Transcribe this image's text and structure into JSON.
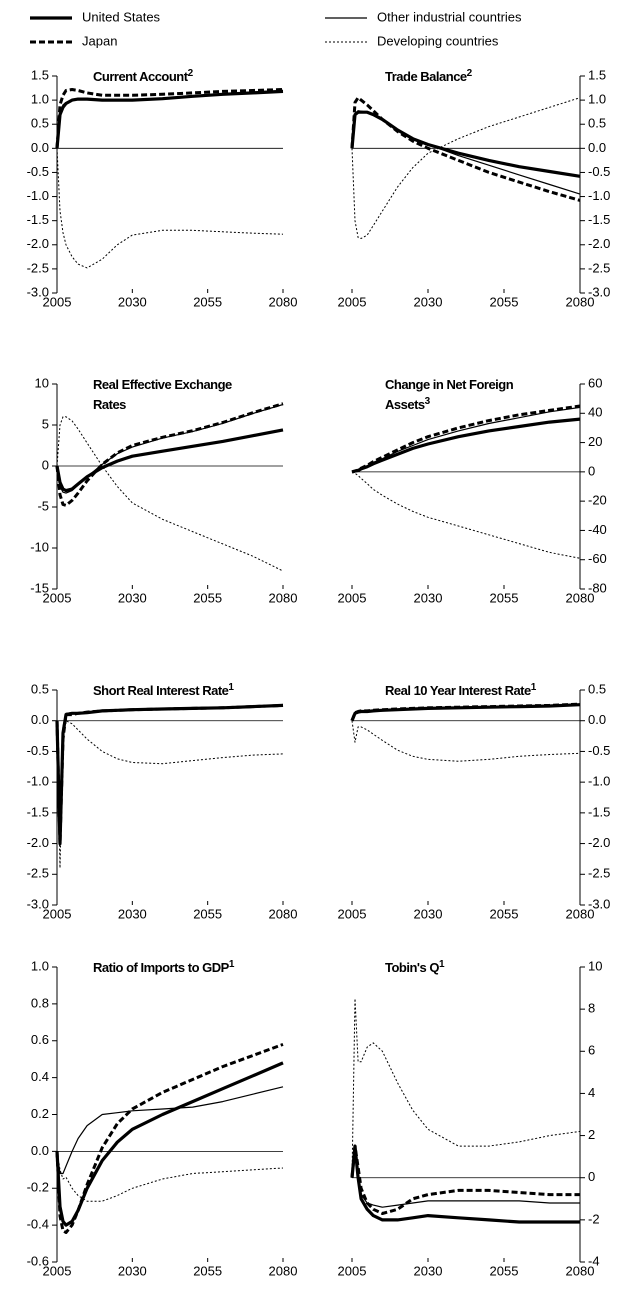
{
  "legend": [
    {
      "name": "United States",
      "color": "#000000",
      "width": 3.2,
      "dash": "none"
    },
    {
      "name": "Japan",
      "color": "#000000",
      "width": 3,
      "dash": "6,3"
    },
    {
      "name": "Other industrial countries",
      "color": "#000000",
      "width": 1.2,
      "dash": "none"
    },
    {
      "name": "Developing countries",
      "color": "#000000",
      "width": 1,
      "dash": "2,2"
    }
  ],
  "chart_data": [
    {
      "type": "line",
      "title": [
        "Current Account"
      ],
      "title_note": "2",
      "yaxis_side": "left",
      "x": [
        2005,
        2006,
        2007,
        2008,
        2010,
        2012,
        2015,
        2020,
        2025,
        2030,
        2040,
        2050,
        2060,
        2070,
        2080
      ],
      "xlim": [
        2005,
        2080
      ],
      "xticks": [
        2005,
        2030,
        2055,
        2080
      ],
      "ylim": [
        -3,
        1.5
      ],
      "yticks": [
        {
          "value": -3,
          "label": "-3.0"
        },
        -2.5,
        {
          "value": -2,
          "label": "-2.0"
        },
        -1.5,
        {
          "value": -1,
          "label": "-1.0"
        },
        -0.5,
        {
          "value": 0,
          "label": "0.0"
        },
        0.5,
        {
          "value": 1,
          "label": "1.0"
        },
        1.5
      ],
      "series": [
        {
          "values": [
            0,
            0.7,
            0.85,
            0.93,
            1.0,
            1.02,
            1.02,
            1.0,
            1.0,
            1.0,
            1.03,
            1.08,
            1.12,
            1.15,
            1.18
          ]
        },
        {
          "values": [
            0,
            0.9,
            1.1,
            1.2,
            1.22,
            1.2,
            1.15,
            1.1,
            1.1,
            1.1,
            1.12,
            1.15,
            1.18,
            1.2,
            1.22
          ]
        },
        {
          "values": [
            0,
            0.75,
            0.9,
            0.95,
            1.0,
            1.02,
            1.02,
            1.0,
            1.0,
            1.0,
            1.03,
            1.08,
            1.13,
            1.17,
            1.2
          ]
        },
        {
          "values": [
            0,
            -1.3,
            -1.75,
            -2.0,
            -2.25,
            -2.4,
            -2.48,
            -2.3,
            -2.0,
            -1.8,
            -1.7,
            -1.7,
            -1.73,
            -1.76,
            -1.78
          ]
        }
      ]
    },
    {
      "type": "line",
      "title": [
        "Trade Balance"
      ],
      "title_note": "2",
      "yaxis_side": "right",
      "x": [
        2005,
        2006,
        2007,
        2008,
        2010,
        2012,
        2015,
        2020,
        2025,
        2030,
        2040,
        2050,
        2060,
        2070,
        2080
      ],
      "xlim": [
        2005,
        2080
      ],
      "xticks": [
        2005,
        2030,
        2055,
        2080
      ],
      "ylim": [
        -3,
        1.5
      ],
      "yticks": [
        {
          "value": -3,
          "label": "-3.0"
        },
        -2.5,
        {
          "value": -2,
          "label": "-2.0"
        },
        -1.5,
        {
          "value": -1,
          "label": "-1.0"
        },
        -0.5,
        {
          "value": 0,
          "label": "0.0"
        },
        0.5,
        {
          "value": 1,
          "label": "1.0"
        },
        1.5
      ],
      "series": [
        {
          "values": [
            0,
            0.7,
            0.75,
            0.75,
            0.75,
            0.7,
            0.6,
            0.38,
            0.2,
            0.08,
            -0.1,
            -0.25,
            -0.38,
            -0.48,
            -0.58
          ]
        },
        {
          "values": [
            0,
            0.95,
            1.05,
            1.0,
            0.9,
            0.78,
            0.6,
            0.35,
            0.15,
            0.0,
            -0.25,
            -0.5,
            -0.7,
            -0.9,
            -1.08
          ]
        },
        {
          "values": [
            0,
            0.72,
            0.78,
            0.77,
            0.75,
            0.68,
            0.58,
            0.38,
            0.2,
            0.08,
            -0.15,
            -0.35,
            -0.55,
            -0.75,
            -0.95
          ]
        },
        {
          "values": [
            0,
            -1.5,
            -1.85,
            -1.87,
            -1.8,
            -1.6,
            -1.3,
            -0.8,
            -0.4,
            -0.1,
            0.2,
            0.45,
            0.65,
            0.85,
            1.05
          ]
        }
      ]
    },
    {
      "type": "line",
      "title": [
        "Real Effective Exchange",
        "Rates"
      ],
      "yaxis_side": "left",
      "x": [
        2005,
        2006,
        2007,
        2008,
        2010,
        2012,
        2015,
        2020,
        2025,
        2030,
        2040,
        2050,
        2060,
        2070,
        2080
      ],
      "xlim": [
        2005,
        2080
      ],
      "xticks": [
        2005,
        2030,
        2055,
        2080
      ],
      "ylim": [
        -15,
        10
      ],
      "yticks": [
        -15,
        -10,
        -5,
        0,
        5,
        10
      ],
      "series": [
        {
          "values": [
            0,
            -2,
            -2.8,
            -3,
            -2.8,
            -2.2,
            -1.3,
            -0.2,
            0.6,
            1.2,
            1.8,
            2.4,
            3.0,
            3.7,
            4.4
          ]
        },
        {
          "values": [
            0,
            -3.5,
            -4.7,
            -4.8,
            -4.2,
            -3.3,
            -1.8,
            0.2,
            1.6,
            2.5,
            3.5,
            4.3,
            5.3,
            6.5,
            7.6
          ]
        },
        {
          "values": [
            0,
            -2.5,
            -3.2,
            -3.3,
            -3,
            -2.3,
            -1.3,
            0.2,
            1.5,
            2.3,
            3.4,
            4.2,
            5.2,
            6.4,
            7.5
          ]
        },
        {
          "values": [
            0,
            5,
            6,
            6,
            5.5,
            4.5,
            2.8,
            0,
            -2.5,
            -4.5,
            -6.5,
            -8,
            -9.5,
            -11,
            -12.8
          ]
        }
      ]
    },
    {
      "type": "line",
      "title": [
        "Change in Net Foreign",
        "Assets"
      ],
      "title_note": "3",
      "yaxis_side": "right",
      "x": [
        2005,
        2006,
        2007,
        2008,
        2010,
        2012,
        2015,
        2020,
        2025,
        2030,
        2040,
        2050,
        2060,
        2070,
        2080
      ],
      "xlim": [
        2005,
        2080
      ],
      "xticks": [
        2005,
        2030,
        2055,
        2080
      ],
      "ylim": [
        -80,
        60
      ],
      "yticks": [
        -80,
        -60,
        -40,
        -20,
        0,
        20,
        40,
        60
      ],
      "series": [
        {
          "values": [
            0,
            0.5,
            1,
            2,
            3.5,
            5.5,
            8,
            12,
            16,
            19,
            24,
            28,
            31,
            34,
            36
          ]
        },
        {
          "values": [
            0,
            0.5,
            1.2,
            2.5,
            4.5,
            7,
            10,
            15,
            20,
            24,
            30,
            35,
            39,
            42,
            45
          ]
        },
        {
          "values": [
            0,
            0.5,
            1.1,
            2.3,
            4,
            6.5,
            9,
            14,
            18,
            22,
            28,
            33,
            37,
            41,
            44
          ]
        },
        {
          "values": [
            0,
            -1,
            -2.5,
            -4.5,
            -8,
            -12,
            -16,
            -22,
            -27,
            -31,
            -37,
            -43,
            -49,
            -55,
            -59
          ]
        }
      ]
    },
    {
      "type": "line",
      "title": [
        "Short Real Interest Rate"
      ],
      "title_note": "1",
      "yaxis_side": "left",
      "x": [
        2005,
        2006,
        2007,
        2008,
        2010,
        2012,
        2015,
        2020,
        2025,
        2030,
        2040,
        2050,
        2060,
        2070,
        2080
      ],
      "xlim": [
        2005,
        2080
      ],
      "xticks": [
        2005,
        2030,
        2055,
        2080
      ],
      "ylim": [
        -3,
        0.5
      ],
      "yticks": [
        {
          "value": -3,
          "label": "-3.0"
        },
        -2.5,
        {
          "value": -2,
          "label": "-2.0"
        },
        -1.5,
        {
          "value": -1,
          "label": "-1.0"
        },
        -0.5,
        {
          "value": 0,
          "label": "0.0"
        },
        0.5
      ],
      "series": [
        {
          "values": [
            0,
            -2,
            -0.2,
            0.1,
            0.12,
            0.12,
            0.13,
            0.16,
            0.17,
            0.18,
            0.19,
            0.2,
            0.21,
            0.23,
            0.25
          ]
        },
        {
          "values": [
            0,
            -2.0,
            -0.3,
            0.1,
            0.1,
            0.12,
            0.14,
            0.16,
            0.17,
            0.18,
            0.19,
            0.2,
            0.21,
            0.23,
            0.25
          ]
        },
        {
          "values": [
            0,
            -1.5,
            -0.1,
            0.12,
            0.13,
            0.13,
            0.14,
            0.16,
            0.17,
            0.18,
            0.19,
            0.2,
            0.21,
            0.23,
            0.25
          ]
        },
        {
          "values": [
            0,
            -2.4,
            -0.3,
            0.0,
            -0.05,
            -0.15,
            -0.3,
            -0.5,
            -0.62,
            -0.68,
            -0.7,
            -0.65,
            -0.6,
            -0.56,
            -0.54
          ]
        }
      ]
    },
    {
      "type": "line",
      "title": [
        "Real 10 Year Interest Rate"
      ],
      "title_note": "1",
      "yaxis_side": "right",
      "x": [
        2005,
        2006,
        2007,
        2008,
        2010,
        2012,
        2015,
        2020,
        2025,
        2030,
        2040,
        2050,
        2060,
        2070,
        2080
      ],
      "xlim": [
        2005,
        2080
      ],
      "xticks": [
        2005,
        2030,
        2055,
        2080
      ],
      "ylim": [
        -3,
        0.5
      ],
      "yticks": [
        {
          "value": -3,
          "label": "-3.0"
        },
        -2.5,
        {
          "value": -2,
          "label": "-2.0"
        },
        -1.5,
        {
          "value": -1,
          "label": "-1.0"
        },
        -0.5,
        {
          "value": 0,
          "label": "0.0"
        },
        0.5
      ],
      "series": [
        {
          "values": [
            0,
            0.12,
            0.14,
            0.15,
            0.15,
            0.16,
            0.17,
            0.18,
            0.19,
            0.2,
            0.21,
            0.22,
            0.23,
            0.24,
            0.26
          ]
        },
        {
          "values": [
            0,
            0.13,
            0.15,
            0.16,
            0.16,
            0.17,
            0.18,
            0.19,
            0.2,
            0.21,
            0.22,
            0.23,
            0.24,
            0.25,
            0.27
          ]
        },
        {
          "values": [
            0,
            0.12,
            0.14,
            0.15,
            0.15,
            0.16,
            0.17,
            0.18,
            0.19,
            0.2,
            0.21,
            0.22,
            0.23,
            0.24,
            0.26
          ]
        },
        {
          "values": [
            0,
            -0.35,
            -0.1,
            -0.1,
            -0.15,
            -0.22,
            -0.32,
            -0.48,
            -0.58,
            -0.63,
            -0.66,
            -0.63,
            -0.58,
            -0.55,
            -0.53
          ]
        }
      ]
    },
    {
      "type": "line",
      "title": [
        "Ratio of Imports to GDP"
      ],
      "title_note": "1",
      "yaxis_side": "left",
      "x": [
        2005,
        2006,
        2007,
        2008,
        2010,
        2012,
        2015,
        2020,
        2025,
        2030,
        2040,
        2050,
        2060,
        2070,
        2080
      ],
      "xlim": [
        2005,
        2080
      ],
      "xticks": [
        2005,
        2030,
        2055,
        2080
      ],
      "ylim": [
        -0.6,
        1
      ],
      "yticks": [
        -0.6,
        -0.4,
        -0.2,
        {
          "value": 0,
          "label": "0.0"
        },
        0.2,
        0.4,
        0.6,
        0.8,
        {
          "value": 1,
          "label": "1.0"
        }
      ],
      "series": [
        {
          "values": [
            0,
            -0.3,
            -0.38,
            -0.4,
            -0.38,
            -0.32,
            -0.2,
            -0.05,
            0.05,
            0.12,
            0.2,
            0.27,
            0.34,
            0.41,
            0.48
          ]
        },
        {
          "values": [
            0,
            -0.35,
            -0.43,
            -0.44,
            -0.4,
            -0.32,
            -0.18,
            0.02,
            0.15,
            0.23,
            0.32,
            0.39,
            0.46,
            0.52,
            0.58
          ]
        },
        {
          "values": [
            0,
            -0.12,
            -0.12,
            -0.08,
            0.0,
            0.07,
            0.14,
            0.2,
            0.21,
            0.22,
            0.23,
            0.24,
            0.27,
            0.31,
            0.35
          ]
        },
        {
          "values": [
            0,
            -0.1,
            -0.15,
            -0.14,
            -0.2,
            -0.24,
            -0.27,
            -0.27,
            -0.24,
            -0.2,
            -0.15,
            -0.12,
            -0.11,
            -0.1,
            -0.09
          ]
        }
      ]
    },
    {
      "type": "line",
      "title": [
        "Tobin's Q"
      ],
      "title_note": "1",
      "yaxis_side": "right",
      "x": [
        2005,
        2006,
        2007,
        2008,
        2010,
        2012,
        2015,
        2020,
        2025,
        2030,
        2040,
        2050,
        2060,
        2070,
        2080
      ],
      "xlim": [
        2005,
        2080
      ],
      "xticks": [
        2005,
        2030,
        2055,
        2080
      ],
      "ylim": [
        -4,
        10
      ],
      "yticks": [
        -4,
        -2,
        0,
        2,
        4,
        6,
        8,
        10
      ],
      "series": [
        {
          "values": [
            0,
            1.5,
            0,
            -1,
            -1.5,
            -1.8,
            -2,
            -2,
            -1.9,
            -1.8,
            -1.9,
            -2,
            -2.1,
            -2.1,
            -2.1
          ]
        },
        {
          "values": [
            0,
            1.5,
            0.5,
            -0.5,
            -1.2,
            -1.5,
            -1.7,
            -1.5,
            -1.0,
            -0.8,
            -0.6,
            -0.6,
            -0.7,
            -0.8,
            -0.8
          ]
        },
        {
          "values": [
            0,
            1.3,
            0,
            -0.8,
            -1.2,
            -1.3,
            -1.4,
            -1.3,
            -1.2,
            -1.1,
            -1.1,
            -1.1,
            -1.1,
            -1.2,
            -1.2
          ]
        },
        {
          "values": [
            0,
            8.5,
            5.5,
            5.5,
            6.2,
            6.4,
            6.0,
            4.5,
            3.2,
            2.3,
            1.5,
            1.5,
            1.7,
            2.0,
            2.2
          ]
        }
      ]
    }
  ]
}
